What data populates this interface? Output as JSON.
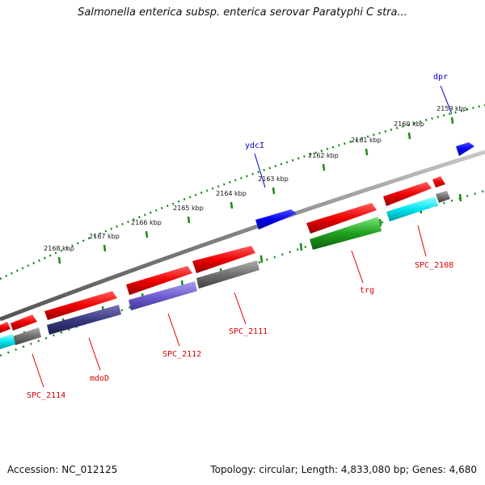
{
  "title": "Salmonella enterica subsp. enterica serovar Paratyphi C stra...",
  "footer": {
    "accession": "Accession: NC_012125",
    "summary": "Topology: circular; Length: 4,833,080 bp; Genes: 4,680"
  },
  "colors": {
    "backbone": "#8a8a8a",
    "tick": "#1a8a1a",
    "label_blue": "#0000cc",
    "label_red": "#dd0000",
    "red": "#ee0000",
    "blue": "#0000ee",
    "cyan": "#00e5ee",
    "gray": "#707070",
    "navy": "#3a3a80",
    "purple": "#7060d0",
    "green": "#20a020"
  },
  "ticks": [
    {
      "label": "2159 kbp"
    },
    {
      "label": "2160 kbp"
    },
    {
      "label": "2161 kbp"
    },
    {
      "label": "2162 kbp"
    },
    {
      "label": "2163 kbp"
    },
    {
      "label": "2164 kbp"
    },
    {
      "label": "2165 kbp"
    },
    {
      "label": "2166 kbp"
    },
    {
      "label": "2167 kbp"
    },
    {
      "label": "2168 kbp"
    }
  ],
  "gene_labels": [
    {
      "text": "dpr",
      "color": "blue"
    },
    {
      "text": "ydcI",
      "color": "blue"
    },
    {
      "text": "SPC_2108",
      "color": "red"
    },
    {
      "text": "trg",
      "color": "red"
    },
    {
      "text": "SPC_2111",
      "color": "red"
    },
    {
      "text": "SPC_2112",
      "color": "red"
    },
    {
      "text": "mdoD",
      "color": "red"
    },
    {
      "text": "SPC_2114",
      "color": "red"
    }
  ]
}
